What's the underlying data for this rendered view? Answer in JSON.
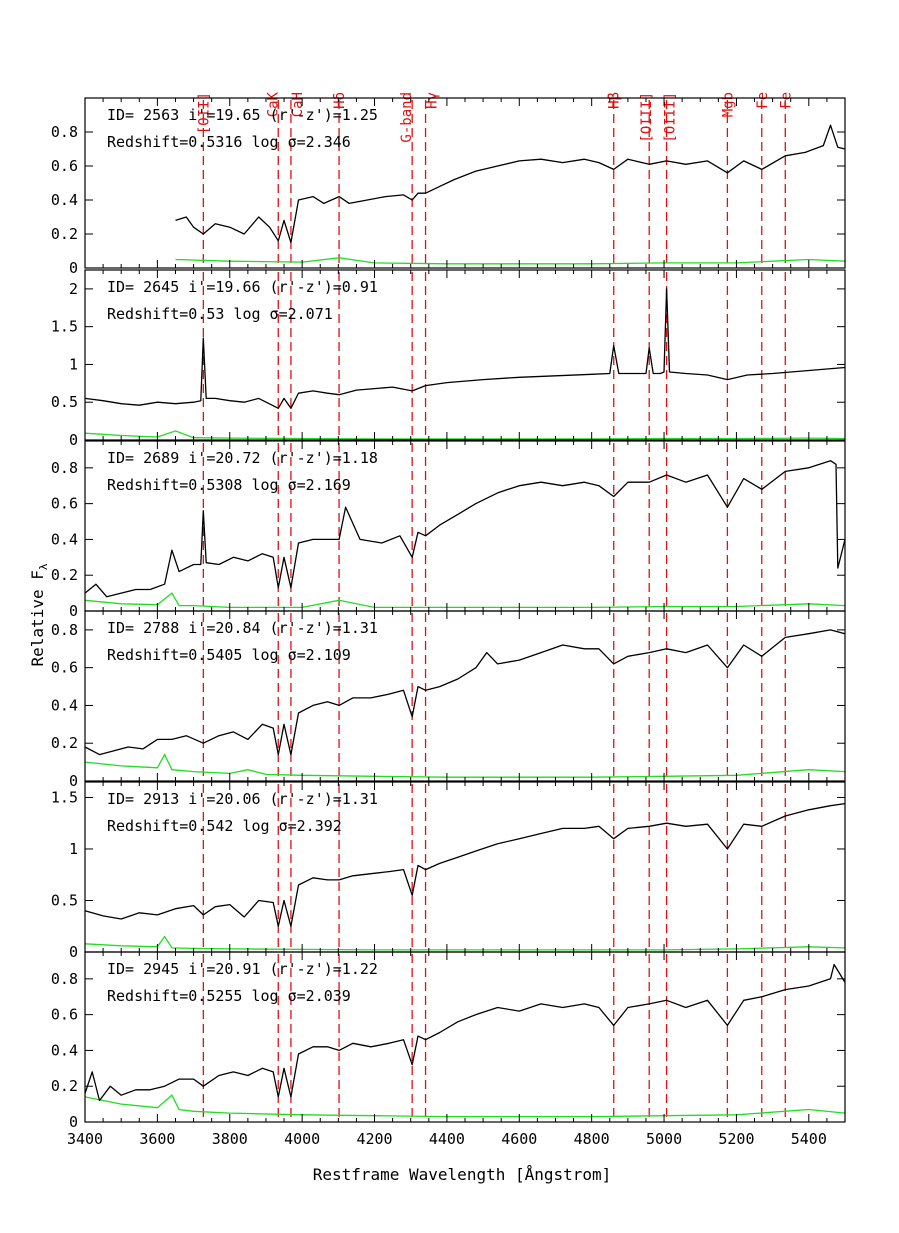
{
  "chart_data": {
    "type": "line",
    "xlabel": "Restframe Wavelength [Ångstrom]",
    "ylabel": "Relative F",
    "ylabel_subscript": "λ",
    "xlim": [
      3400,
      5500
    ],
    "x_ticks": [
      3400,
      3600,
      3800,
      4000,
      4200,
      4400,
      4600,
      4800,
      5000,
      5200,
      5400
    ],
    "colors": {
      "spectrum": "#000000",
      "error": "#22dd22",
      "lines": "#e01010"
    },
    "reference_lines": [
      {
        "label": "[OII]",
        "wavelength": 3727
      },
      {
        "label": "CaK",
        "wavelength": 3934
      },
      {
        "label": "CaH",
        "wavelength": 3969
      },
      {
        "label": "Hδ",
        "wavelength": 4102
      },
      {
        "label": "G-band",
        "wavelength": 4304
      },
      {
        "label": "Hγ",
        "wavelength": 4341
      },
      {
        "label": "Hβ",
        "wavelength": 4861
      },
      {
        "label": "[OIII]",
        "wavelength": 4959
      },
      {
        "label": "[OIII]",
        "wavelength": 5007
      },
      {
        "label": "Mgb",
        "wavelength": 5175
      },
      {
        "label": "Fe",
        "wavelength": 5270
      },
      {
        "label": "Fe",
        "wavelength": 5335
      }
    ],
    "panels": [
      {
        "id_text": "ID= 2563  i'=19.65 (r'-z')=1.25",
        "z_text": "Redshift=0.5316  log σ=2.346",
        "ylim": [
          0,
          1.0
        ],
        "y_ticks": [
          "0",
          "0.2",
          "0.4",
          "0.6",
          "0.8"
        ],
        "y_tick_values": [
          0,
          0.2,
          0.4,
          0.6,
          0.8
        ],
        "spectrum": {
          "wavelength": [
            3650,
            3680,
            3700,
            3727,
            3760,
            3800,
            3840,
            3880,
            3910,
            3934,
            3950,
            3969,
            3990,
            4030,
            4060,
            4102,
            4130,
            4180,
            4230,
            4280,
            4304,
            4320,
            4341,
            4380,
            4420,
            4480,
            4540,
            4600,
            4660,
            4720,
            4780,
            4820,
            4861,
            4900,
            4959,
            5007,
            5060,
            5120,
            5175,
            5220,
            5270,
            5335,
            5390,
            5440,
            5460,
            5480,
            5500
          ],
          "flux": [
            0.28,
            0.3,
            0.24,
            0.2,
            0.26,
            0.24,
            0.2,
            0.3,
            0.24,
            0.16,
            0.28,
            0.15,
            0.4,
            0.42,
            0.38,
            0.42,
            0.38,
            0.4,
            0.42,
            0.43,
            0.4,
            0.44,
            0.44,
            0.48,
            0.52,
            0.57,
            0.6,
            0.63,
            0.64,
            0.62,
            0.64,
            0.62,
            0.58,
            0.64,
            0.61,
            0.63,
            0.61,
            0.63,
            0.56,
            0.63,
            0.58,
            0.66,
            0.68,
            0.72,
            0.84,
            0.71,
            0.7
          ]
        },
        "error": {
          "wavelength": [
            3650,
            3800,
            4000,
            4102,
            4200,
            4400,
            4600,
            4800,
            5000,
            5200,
            5400,
            5500
          ],
          "flux": [
            0.05,
            0.04,
            0.035,
            0.06,
            0.03,
            0.025,
            0.025,
            0.025,
            0.03,
            0.03,
            0.05,
            0.04
          ]
        }
      },
      {
        "id_text": "ID= 2645  i'=19.66 (r'-z')=0.91",
        "z_text": "Redshift=0.53  log σ=2.071",
        "ylim": [
          0,
          2.25
        ],
        "y_ticks": [
          "0",
          "0.5",
          "1",
          "1.5",
          "2"
        ],
        "y_tick_values": [
          0,
          0.5,
          1,
          1.5,
          2
        ],
        "spectrum": {
          "wavelength": [
            3400,
            3450,
            3500,
            3550,
            3600,
            3650,
            3700,
            3720,
            3727,
            3735,
            3760,
            3800,
            3840,
            3880,
            3934,
            3950,
            3969,
            3990,
            4030,
            4070,
            4102,
            4150,
            4200,
            4250,
            4304,
            4341,
            4400,
            4500,
            4600,
            4700,
            4800,
            4850,
            4861,
            4875,
            4920,
            4950,
            4959,
            4970,
            4990,
            5000,
            5007,
            5015,
            5060,
            5120,
            5175,
            5230,
            5300,
            5400,
            5500
          ],
          "flux": [
            0.55,
            0.52,
            0.48,
            0.46,
            0.5,
            0.48,
            0.5,
            0.52,
            1.35,
            0.55,
            0.55,
            0.52,
            0.5,
            0.55,
            0.42,
            0.55,
            0.42,
            0.62,
            0.65,
            0.62,
            0.6,
            0.66,
            0.68,
            0.7,
            0.65,
            0.72,
            0.76,
            0.8,
            0.83,
            0.85,
            0.87,
            0.88,
            1.25,
            0.88,
            0.88,
            0.88,
            1.22,
            0.88,
            0.88,
            0.9,
            2.0,
            0.9,
            0.88,
            0.86,
            0.8,
            0.86,
            0.88,
            0.92,
            0.96
          ]
        },
        "error": {
          "wavelength": [
            3400,
            3500,
            3600,
            3650,
            3700,
            3800,
            4000,
            4200,
            4400,
            4600,
            4800,
            5000,
            5200,
            5400,
            5500
          ],
          "flux": [
            0.09,
            0.06,
            0.04,
            0.12,
            0.03,
            0.025,
            0.02,
            0.015,
            0.015,
            0.015,
            0.015,
            0.02,
            0.02,
            0.025,
            0.02
          ]
        }
      },
      {
        "id_text": "ID= 2689  i'=20.72 (r'-z')=1.18",
        "z_text": "Redshift=0.5308  log σ=2.169",
        "ylim": [
          0,
          0.95
        ],
        "y_ticks": [
          "0",
          "0.2",
          "0.4",
          "0.6",
          "0.8"
        ],
        "y_tick_values": [
          0,
          0.2,
          0.4,
          0.6,
          0.8
        ],
        "spectrum": {
          "wavelength": [
            3400,
            3430,
            3460,
            3500,
            3540,
            3580,
            3620,
            3640,
            3660,
            3700,
            3720,
            3727,
            3735,
            3770,
            3810,
            3850,
            3890,
            3920,
            3934,
            3950,
            3969,
            3990,
            4030,
            4070,
            4102,
            4120,
            4160,
            4220,
            4270,
            4304,
            4320,
            4341,
            4380,
            4430,
            4480,
            4540,
            4600,
            4660,
            4720,
            4780,
            4820,
            4861,
            4900,
            4959,
            5007,
            5060,
            5120,
            5175,
            5220,
            5270,
            5335,
            5400,
            5460,
            5475,
            5480,
            5500
          ],
          "flux": [
            0.1,
            0.15,
            0.08,
            0.1,
            0.12,
            0.12,
            0.15,
            0.34,
            0.22,
            0.26,
            0.26,
            0.56,
            0.27,
            0.26,
            0.3,
            0.28,
            0.32,
            0.3,
            0.13,
            0.3,
            0.13,
            0.38,
            0.4,
            0.4,
            0.4,
            0.58,
            0.4,
            0.38,
            0.42,
            0.3,
            0.44,
            0.42,
            0.48,
            0.54,
            0.6,
            0.66,
            0.7,
            0.72,
            0.7,
            0.72,
            0.7,
            0.64,
            0.72,
            0.72,
            0.76,
            0.72,
            0.76,
            0.58,
            0.74,
            0.68,
            0.78,
            0.8,
            0.84,
            0.82,
            0.24,
            0.4
          ]
        },
        "error": {
          "wavelength": [
            3400,
            3500,
            3600,
            3640,
            3660,
            3700,
            3800,
            4000,
            4102,
            4200,
            4400,
            4600,
            4800,
            5000,
            5200,
            5400,
            5500
          ],
          "flux": [
            0.06,
            0.04,
            0.035,
            0.1,
            0.03,
            0.03,
            0.02,
            0.02,
            0.06,
            0.02,
            0.02,
            0.02,
            0.02,
            0.025,
            0.025,
            0.04,
            0.03
          ]
        }
      },
      {
        "id_text": "ID= 2788  i'=20.84 (r'-z')=1.31",
        "z_text": "Redshift=0.5405  log σ=2.109",
        "ylim": [
          0,
          0.9
        ],
        "y_ticks": [
          "0",
          "0.2",
          "0.4",
          "0.6",
          "0.8"
        ],
        "y_tick_values": [
          0,
          0.2,
          0.4,
          0.6,
          0.8
        ],
        "spectrum": {
          "wavelength": [
            3400,
            3440,
            3480,
            3520,
            3560,
            3600,
            3640,
            3680,
            3727,
            3770,
            3810,
            3850,
            3890,
            3920,
            3934,
            3950,
            3969,
            3990,
            4030,
            4070,
            4102,
            4140,
            4190,
            4240,
            4280,
            4304,
            4320,
            4341,
            4380,
            4430,
            4480,
            4510,
            4540,
            4600,
            4660,
            4720,
            4780,
            4820,
            4861,
            4900,
            4959,
            5007,
            5060,
            5120,
            5175,
            5220,
            5270,
            5335,
            5400,
            5460,
            5500
          ],
          "flux": [
            0.18,
            0.14,
            0.16,
            0.18,
            0.17,
            0.22,
            0.22,
            0.24,
            0.2,
            0.24,
            0.26,
            0.22,
            0.3,
            0.28,
            0.14,
            0.3,
            0.14,
            0.36,
            0.4,
            0.42,
            0.4,
            0.44,
            0.44,
            0.46,
            0.48,
            0.34,
            0.5,
            0.48,
            0.5,
            0.54,
            0.6,
            0.68,
            0.62,
            0.64,
            0.68,
            0.72,
            0.7,
            0.7,
            0.62,
            0.66,
            0.68,
            0.7,
            0.68,
            0.72,
            0.6,
            0.72,
            0.66,
            0.76,
            0.78,
            0.8,
            0.78
          ]
        },
        "error": {
          "wavelength": [
            3400,
            3500,
            3600,
            3620,
            3640,
            3700,
            3800,
            3850,
            3900,
            4000,
            4200,
            4400,
            4600,
            4800,
            5000,
            5200,
            5400,
            5500
          ],
          "flux": [
            0.1,
            0.08,
            0.07,
            0.14,
            0.06,
            0.05,
            0.04,
            0.06,
            0.035,
            0.03,
            0.025,
            0.02,
            0.02,
            0.02,
            0.025,
            0.03,
            0.06,
            0.05
          ]
        }
      },
      {
        "id_text": "ID= 2913  i'=20.06 (r'-z')=1.31",
        "z_text": "Redshift=0.542  log σ=2.392",
        "ylim": [
          0,
          1.65
        ],
        "y_ticks": [
          "0",
          "0.5",
          "1",
          "1.5"
        ],
        "y_tick_values": [
          0,
          0.5,
          1,
          1.5
        ],
        "spectrum": {
          "wavelength": [
            3400,
            3450,
            3500,
            3550,
            3600,
            3650,
            3700,
            3727,
            3760,
            3800,
            3840,
            3880,
            3920,
            3934,
            3950,
            3969,
            3990,
            4030,
            4070,
            4102,
            4140,
            4190,
            4240,
            4280,
            4304,
            4320,
            4341,
            4380,
            4430,
            4480,
            4540,
            4600,
            4660,
            4720,
            4780,
            4820,
            4861,
            4900,
            4959,
            5007,
            5060,
            5120,
            5175,
            5220,
            5270,
            5335,
            5400,
            5460,
            5500
          ],
          "flux": [
            0.4,
            0.35,
            0.32,
            0.38,
            0.36,
            0.42,
            0.45,
            0.36,
            0.44,
            0.46,
            0.34,
            0.5,
            0.48,
            0.25,
            0.5,
            0.25,
            0.65,
            0.72,
            0.7,
            0.7,
            0.74,
            0.76,
            0.78,
            0.8,
            0.55,
            0.84,
            0.8,
            0.86,
            0.92,
            0.98,
            1.05,
            1.1,
            1.15,
            1.2,
            1.2,
            1.22,
            1.1,
            1.2,
            1.22,
            1.25,
            1.22,
            1.24,
            1.0,
            1.24,
            1.22,
            1.32,
            1.38,
            1.42,
            1.44
          ]
        },
        "error": {
          "wavelength": [
            3400,
            3500,
            3600,
            3620,
            3640,
            3700,
            3800,
            4000,
            4200,
            4400,
            4600,
            4800,
            5000,
            5200,
            5400,
            5500
          ],
          "flux": [
            0.08,
            0.06,
            0.05,
            0.15,
            0.04,
            0.035,
            0.03,
            0.025,
            0.02,
            0.02,
            0.02,
            0.02,
            0.02,
            0.03,
            0.05,
            0.04
          ]
        }
      },
      {
        "id_text": "ID= 2945  i'=20.91 (r'-z')=1.22",
        "z_text": "Redshift=0.5255  log σ=2.039",
        "ylim": [
          0,
          0.95
        ],
        "y_ticks": [
          "0",
          "0.2",
          "0.4",
          "0.6",
          "0.8"
        ],
        "y_tick_values": [
          0,
          0.2,
          0.4,
          0.6,
          0.8
        ],
        "spectrum": {
          "wavelength": [
            3400,
            3420,
            3440,
            3470,
            3500,
            3540,
            3580,
            3620,
            3660,
            3700,
            3727,
            3770,
            3810,
            3850,
            3890,
            3920,
            3934,
            3950,
            3969,
            3990,
            4030,
            4070,
            4102,
            4140,
            4190,
            4240,
            4280,
            4304,
            4320,
            4341,
            4380,
            4430,
            4480,
            4540,
            4600,
            4660,
            4720,
            4780,
            4820,
            4861,
            4900,
            4959,
            5007,
            5060,
            5120,
            5175,
            5220,
            5270,
            5335,
            5400,
            5460,
            5470,
            5500
          ],
          "flux": [
            0.16,
            0.28,
            0.12,
            0.2,
            0.15,
            0.18,
            0.18,
            0.2,
            0.24,
            0.24,
            0.2,
            0.26,
            0.28,
            0.26,
            0.3,
            0.28,
            0.14,
            0.3,
            0.14,
            0.38,
            0.42,
            0.42,
            0.4,
            0.44,
            0.42,
            0.44,
            0.46,
            0.32,
            0.48,
            0.46,
            0.5,
            0.56,
            0.6,
            0.64,
            0.62,
            0.66,
            0.64,
            0.66,
            0.64,
            0.54,
            0.64,
            0.66,
            0.68,
            0.64,
            0.68,
            0.54,
            0.68,
            0.7,
            0.74,
            0.76,
            0.8,
            0.88,
            0.78
          ]
        },
        "error": {
          "wavelength": [
            3400,
            3450,
            3500,
            3600,
            3640,
            3660,
            3700,
            3800,
            4000,
            4200,
            4400,
            4600,
            4800,
            5000,
            5200,
            5400,
            5500
          ],
          "flux": [
            0.14,
            0.12,
            0.1,
            0.08,
            0.15,
            0.07,
            0.06,
            0.05,
            0.04,
            0.035,
            0.03,
            0.03,
            0.03,
            0.035,
            0.04,
            0.07,
            0.05
          ]
        }
      }
    ]
  }
}
